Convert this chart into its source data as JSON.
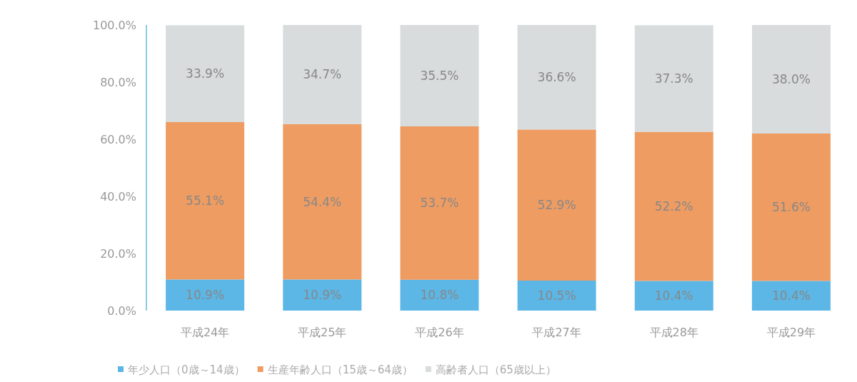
{
  "chart_data": {
    "type": "bar",
    "stacked": true,
    "categories": [
      "平成24年",
      "平成25年",
      "平成26年",
      "平成27年",
      "平成28年",
      "平成29年"
    ],
    "series": [
      {
        "name": "年少人口（0歳～14歳）",
        "color": "#5cb6e6",
        "values": [
          10.9,
          10.9,
          10.8,
          10.5,
          10.4,
          10.4
        ],
        "value_labels": [
          "10.9%",
          "10.9%",
          "10.8%",
          "10.5%",
          "10.4%",
          "10.4%"
        ]
      },
      {
        "name": "生産年齢人口（15歳～64歳）",
        "color": "#ee9c62",
        "values": [
          55.1,
          54.4,
          53.7,
          52.9,
          52.2,
          51.6
        ],
        "value_labels": [
          "55.1%",
          "54.4%",
          "53.7%",
          "52.9%",
          "52.2%",
          "51.6%"
        ]
      },
      {
        "name": "高齢者人口（65歳以上）",
        "color": "#d8dcdc",
        "values": [
          33.9,
          34.7,
          35.5,
          36.6,
          37.3,
          38.0
        ],
        "value_labels": [
          "33.9%",
          "34.7%",
          "35.5%",
          "36.6%",
          "37.3%",
          "38.0%"
        ]
      }
    ],
    "ylim": [
      0,
      100
    ],
    "yticks": [
      {
        "value": 0,
        "label": "0.0%"
      },
      {
        "value": 20,
        "label": "20.0%"
      },
      {
        "value": 40,
        "label": "40.0%"
      },
      {
        "value": 60,
        "label": "60.0%"
      },
      {
        "value": 80,
        "label": "80.0%"
      },
      {
        "value": 100,
        "label": "100.0%"
      }
    ],
    "grid": false,
    "legend": "bottom"
  }
}
